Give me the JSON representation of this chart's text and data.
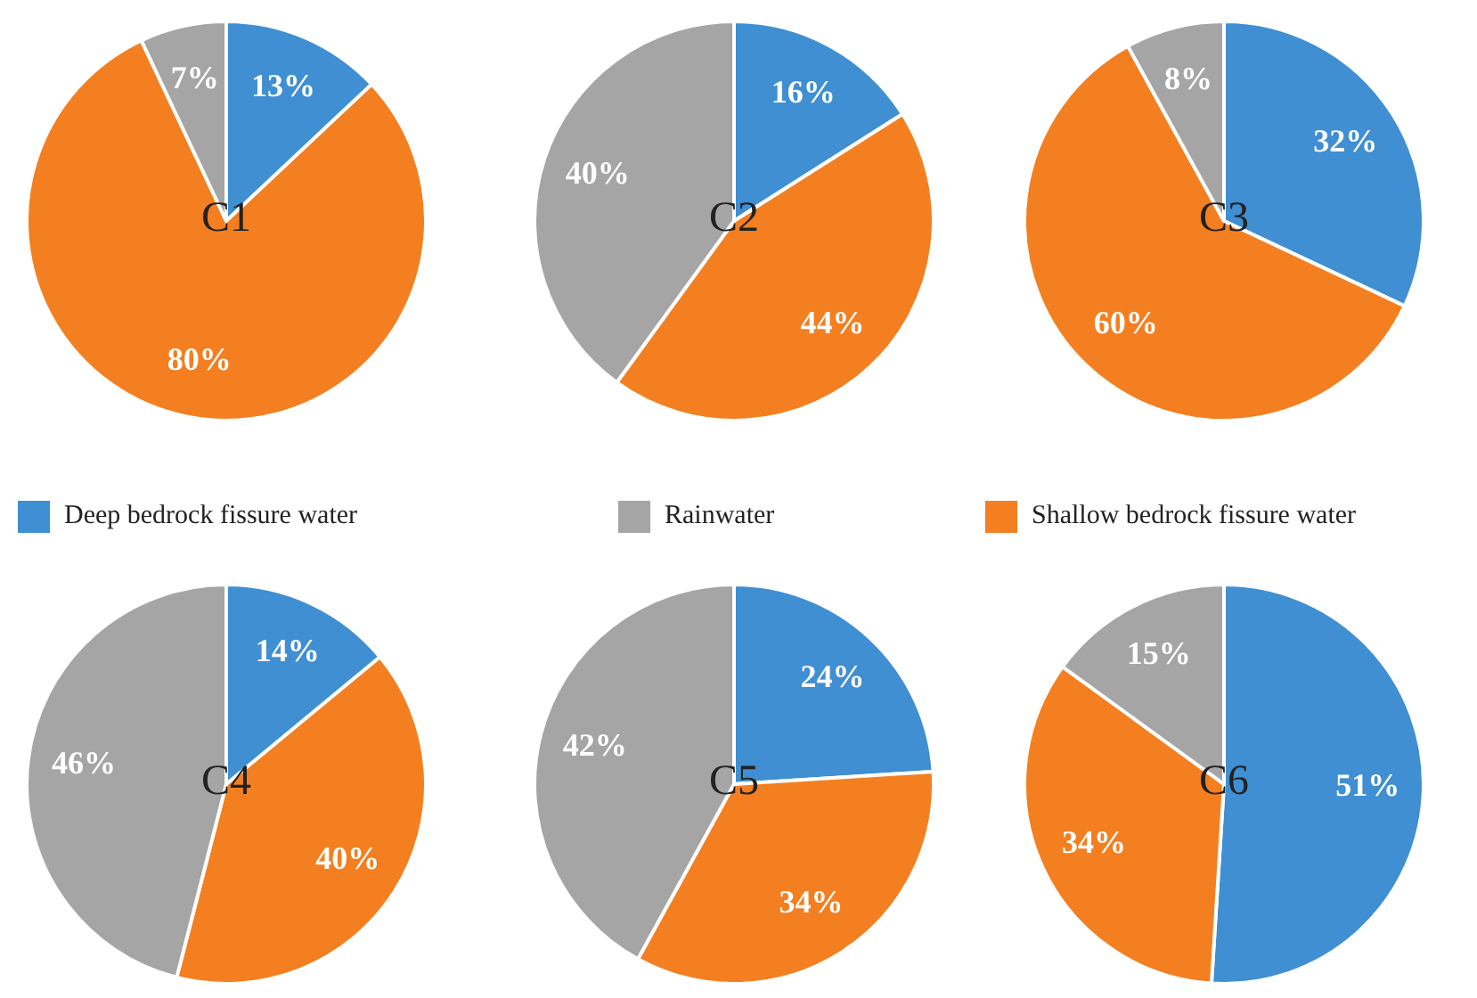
{
  "chart_data": [
    {
      "type": "pie",
      "title": "C1",
      "categories": [
        "Deep bedrock fissure water",
        "Shallow bedrock fissure water",
        "Rainwater"
      ],
      "values": [
        13,
        80,
        7
      ],
      "value_labels": [
        "13%",
        "80%",
        "7%"
      ],
      "colors": [
        "#3f8fd2",
        "#f47f20",
        "#a5a5a5"
      ],
      "legend": "bottom"
    },
    {
      "type": "pie",
      "title": "C2",
      "values": [
        16,
        44,
        40
      ],
      "value_labels": [
        "16%",
        "44%",
        "40%"
      ],
      "colors": [
        "#3f8fd2",
        "#f47f20",
        "#a5a5a5"
      ]
    },
    {
      "type": "pie",
      "title": "C3",
      "values": [
        32,
        60,
        8
      ],
      "value_labels": [
        "32%",
        "60%",
        "8%"
      ],
      "colors": [
        "#3f8fd2",
        "#f47f20",
        "#a5a5a5"
      ]
    },
    {
      "type": "pie",
      "title": "C4",
      "values": [
        14,
        40,
        46
      ],
      "value_labels": [
        "14%",
        "40%",
        "46%"
      ],
      "colors": [
        "#3f8fd2",
        "#f47f20",
        "#a5a5a5"
      ]
    },
    {
      "type": "pie",
      "title": "C5",
      "values": [
        24,
        34,
        42
      ],
      "value_labels": [
        "24%",
        "34%",
        "42%"
      ],
      "colors": [
        "#3f8fd2",
        "#f47f20",
        "#a5a5a5"
      ]
    },
    {
      "type": "pie",
      "title": "C6",
      "values": [
        51,
        34,
        15
      ],
      "value_labels": [
        "51%",
        "34%",
        "15%"
      ],
      "colors": [
        "#3f8fd2",
        "#f47f20",
        "#a5a5a5"
      ]
    }
  ]
}
